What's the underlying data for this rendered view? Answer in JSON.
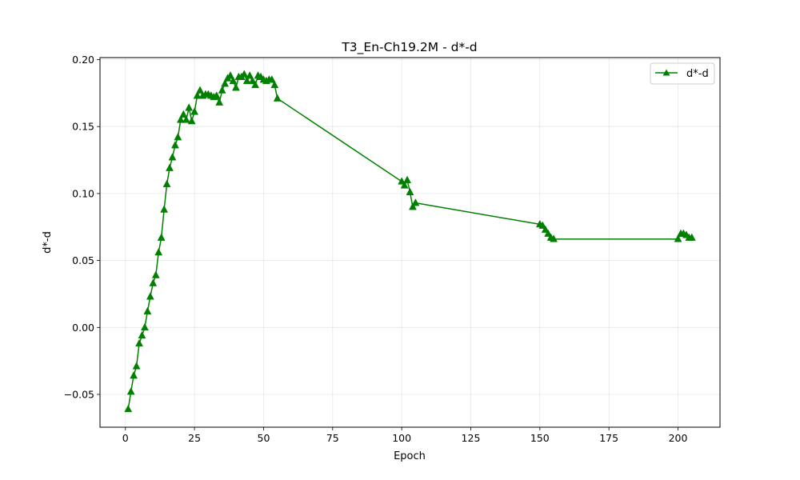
{
  "chart_data": {
    "type": "line",
    "title": "T3_En-Ch19.2M - d*-d",
    "xlabel": "Epoch",
    "ylabel": "d*-d",
    "xlim": [
      -9.2,
      215.2
    ],
    "ylim": [
      -0.0745,
      0.2015
    ],
    "xticks": [
      0,
      25,
      50,
      75,
      100,
      125,
      150,
      175,
      200
    ],
    "xtick_labels": [
      "0",
      "25",
      "50",
      "75",
      "100",
      "125",
      "150",
      "175",
      "200"
    ],
    "yticks": [
      -0.05,
      0.0,
      0.05,
      0.1,
      0.15,
      0.2
    ],
    "ytick_labels": [
      "−0.05",
      "0.00",
      "0.05",
      "0.10",
      "0.15",
      "0.20"
    ],
    "grid": true,
    "legend_position": "top-right",
    "series": [
      {
        "name": "d*-d",
        "color": "#008000",
        "marker": "triangle-up",
        "x": [
          1,
          2,
          3,
          4,
          5,
          6,
          7,
          8,
          9,
          10,
          11,
          12,
          13,
          14,
          15,
          16,
          17,
          18,
          19,
          20,
          21,
          22,
          23,
          24,
          25,
          26,
          27,
          28,
          29,
          30,
          31,
          32,
          33,
          34,
          35,
          36,
          37,
          38,
          39,
          40,
          41,
          42,
          43,
          44,
          45,
          46,
          47,
          48,
          49,
          50,
          51,
          52,
          53,
          54,
          55,
          100,
          101,
          102,
          103,
          104,
          105,
          150,
          151,
          152,
          153,
          154,
          155,
          200,
          201,
          202,
          203,
          204,
          205
        ],
        "y": [
          -0.061,
          -0.048,
          -0.036,
          -0.029,
          -0.012,
          -0.006,
          0.0,
          0.012,
          0.023,
          0.033,
          0.039,
          0.056,
          0.067,
          0.088,
          0.107,
          0.119,
          0.127,
          0.136,
          0.142,
          0.155,
          0.159,
          0.155,
          0.164,
          0.154,
          0.161,
          0.173,
          0.177,
          0.173,
          0.174,
          0.174,
          0.173,
          0.172,
          0.173,
          0.168,
          0.177,
          0.182,
          0.186,
          0.188,
          0.184,
          0.179,
          0.187,
          0.187,
          0.189,
          0.184,
          0.188,
          0.184,
          0.181,
          0.188,
          0.187,
          0.185,
          0.184,
          0.185,
          0.185,
          0.181,
          0.171,
          0.109,
          0.106,
          0.11,
          0.101,
          0.09,
          0.093,
          0.077,
          0.076,
          0.073,
          0.07,
          0.067,
          0.066,
          0.066,
          0.07,
          0.07,
          0.069,
          0.067,
          0.067
        ]
      }
    ]
  }
}
